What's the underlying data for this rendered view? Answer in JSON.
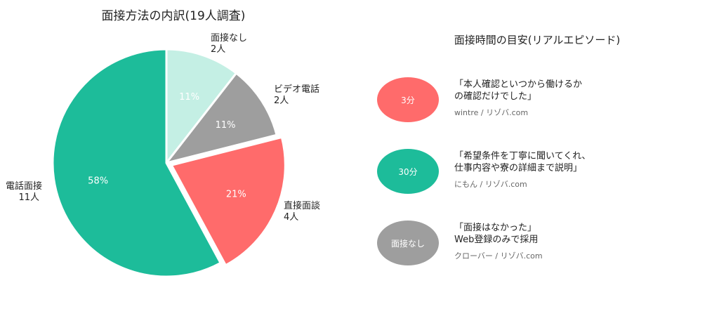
{
  "chart_data": {
    "type": "pie",
    "title": "面接方法の内訳(19人調査)",
    "slices": [
      {
        "name": "面接なし",
        "count_label": "2人",
        "value": 2,
        "percent_label": "11%",
        "color": "#c4efe4"
      },
      {
        "name": "ビデオ電話",
        "count_label": "2人",
        "value": 2,
        "percent_label": "11%",
        "color": "#9e9e9e"
      },
      {
        "name": "直接面談",
        "count_label": "4人",
        "value": 4,
        "percent_label": "21%",
        "color": "#ff6b6b"
      },
      {
        "name": "電話面接",
        "count_label": "11人",
        "value": 11,
        "percent_label": "58%",
        "color": "#1dbc9a"
      }
    ]
  },
  "episodes_title": "面接時間の目安(リアルエピソード)",
  "episodes": [
    {
      "bubble": "3分",
      "color": "#ff6b6b",
      "quote": "「本人確認といつから働けるか\nの確認だけでした」",
      "source": "wintre / リゾバ.com"
    },
    {
      "bubble": "30分",
      "color": "#1dbc9a",
      "quote": "「希望条件を丁寧に聞いてくれ、\n仕事内容や寮の詳細まで説明」",
      "source": "にもん / リゾバ.com"
    },
    {
      "bubble": "面接なし",
      "color": "#9e9e9e",
      "quote": "「面接はなかった」\nWeb登録のみで採用",
      "source": "クローバー / リゾバ.com"
    }
  ]
}
